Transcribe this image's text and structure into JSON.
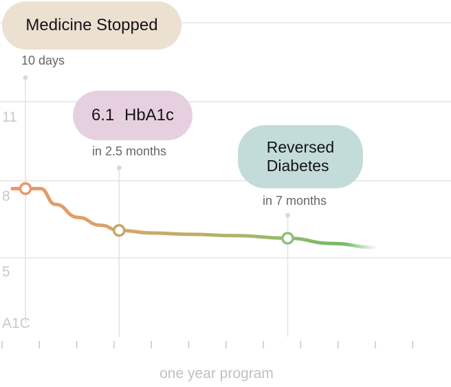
{
  "chart_data": {
    "type": "line",
    "title": "",
    "xlabel": "one year program",
    "ylabel": "A1C",
    "y_ticks": [
      "5",
      "8",
      "11"
    ],
    "x_tick_count": 12,
    "grid": true,
    "series": [
      {
        "values_x_months": [
          -0.35,
          0.0,
          0.4,
          0.8,
          1.4,
          2.0,
          2.5,
          3.4,
          4.4,
          5.6,
          7.0,
          8.2,
          9.3
        ],
        "values_y": [
          7.7,
          7.7,
          7.7,
          7.1,
          6.6,
          6.3,
          6.1,
          6.0,
          5.95,
          5.9,
          5.8,
          5.6,
          5.45
        ],
        "color_start": "#e8956a",
        "color_end": "#7bbd6b"
      }
    ],
    "milestones": [
      {
        "month": 0.0,
        "value": 7.7,
        "pill": "Medicine Stopped",
        "caption": "10 days",
        "color": "#ece0d1",
        "marker_color": "#e8956a"
      },
      {
        "month": 2.5,
        "value": 6.1,
        "pill": "6.1 HbA1c",
        "caption": "in 2.5 months",
        "color": "#e6d0e0",
        "marker_color": "#c2a868"
      },
      {
        "month": 7.0,
        "value": 5.8,
        "pill_lines": [
          "Reversed",
          "Diabetes"
        ],
        "caption": "in 7 months",
        "color": "#c3dcda",
        "marker_color": "#8cc078"
      }
    ]
  }
}
